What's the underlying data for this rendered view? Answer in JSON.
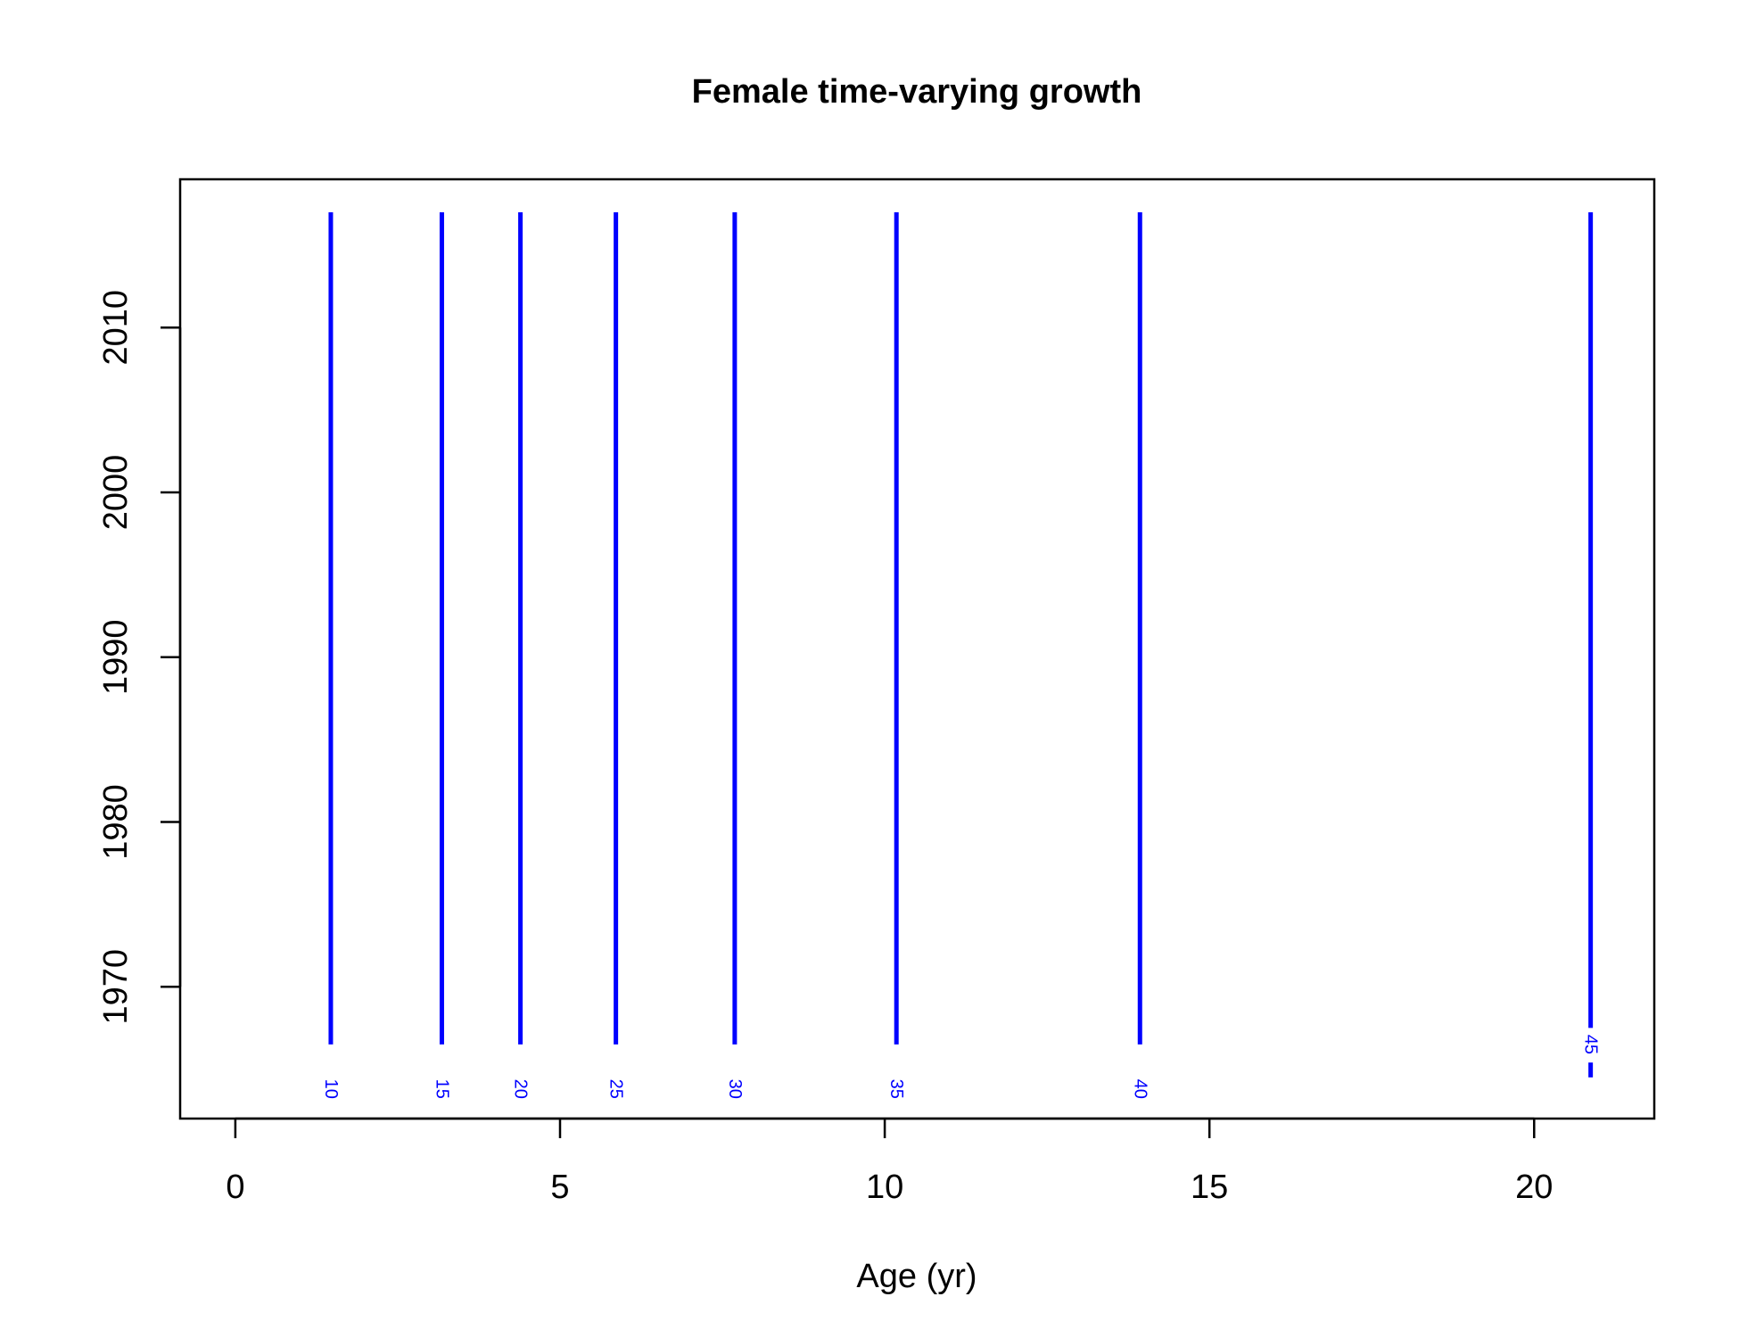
{
  "chart_data": {
    "type": "line",
    "title": "Female time-varying growth",
    "xlabel": "Age (yr)",
    "ylabel": "",
    "xlim": [
      -0.85,
      21.85
    ],
    "ylim": [
      1962,
      2019
    ],
    "x_ticks": [
      0,
      5,
      10,
      15,
      20
    ],
    "y_ticks": [
      1970,
      1980,
      1990,
      2000,
      2010
    ],
    "grid": false,
    "line_color": "#0000FF",
    "series": [
      {
        "label": "10",
        "x": [
          1.47,
          1.47
        ],
        "y": [
          1966.5,
          2017
        ]
      },
      {
        "label": "15",
        "x": [
          3.18,
          3.18
        ],
        "y": [
          1966.5,
          2017
        ]
      },
      {
        "label": "20",
        "x": [
          4.39,
          4.39
        ],
        "y": [
          1966.5,
          2017
        ]
      },
      {
        "label": "25",
        "x": [
          5.86,
          5.86
        ],
        "y": [
          1966.5,
          2017
        ]
      },
      {
        "label": "30",
        "x": [
          7.69,
          7.69
        ],
        "y": [
          1966.5,
          2017
        ]
      },
      {
        "label": "35",
        "x": [
          10.18,
          10.18
        ],
        "y": [
          1966.5,
          2017
        ]
      },
      {
        "label": "40",
        "x": [
          13.93,
          13.93
        ],
        "y": [
          1966.5,
          2017
        ]
      },
      {
        "label": "45",
        "x": [
          20.87,
          20.87
        ],
        "y": [
          1964.5,
          2017
        ]
      }
    ]
  }
}
